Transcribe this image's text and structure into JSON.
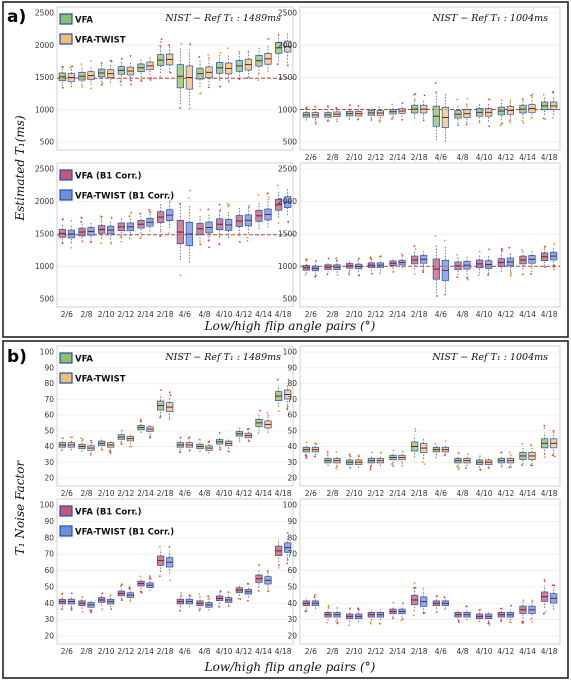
{
  "x_axis_label": "Low/high flip angle pairs (°)",
  "colors": {
    "VFA": "#8cc06a",
    "VFA-TWIST": "#f0c070",
    "VFA (B1 Corr.)": "#c05a78",
    "VFA-TWIST (B1 Corr.)": "#6e8fe0",
    "box_edge": "#2850b0",
    "reference_line": "#b04a4a"
  },
  "sections": [
    {
      "label": "a)",
      "y_axis_label": "Estimated T₁(ms)",
      "panels": [
        {
          "id": "a-top-left",
          "title": "NIST − Ref T₁ : 1489ms",
          "legend": [
            "VFA",
            "VFA-TWIST"
          ],
          "yticks": [
            "2500",
            "2000",
            "1500",
            "1000",
            "500"
          ],
          "show_x_ticks": false
        },
        {
          "id": "a-top-right",
          "title": "NIST − Ref T₁ : 1004ms",
          "legend": [],
          "yticks": [
            "2500",
            "2000",
            "1500",
            "1000",
            "500"
          ],
          "show_x_ticks": true
        },
        {
          "id": "a-bottom-left",
          "title": "",
          "legend": [
            "VFA (B1 Corr.)",
            "VFA-TWIST (B1 Corr.)"
          ],
          "yticks": [
            "2500",
            "2000",
            "1500",
            "1000",
            "500"
          ],
          "show_x_ticks": true
        },
        {
          "id": "a-bottom-right",
          "title": "",
          "legend": [],
          "yticks": [
            "2500",
            "2000",
            "1500",
            "1000",
            "500"
          ],
          "show_x_ticks": true
        }
      ]
    },
    {
      "label": "b)",
      "y_axis_label": "T₁ Noise Factor",
      "panels": [
        {
          "id": "b-top-left",
          "title": "NIST − Ref T₁ : 1489ms",
          "legend": [
            "VFA",
            "VFA-TWIST"
          ],
          "yticks": [
            "100",
            "90",
            "80",
            "70",
            "60",
            "50",
            "40",
            "30",
            "20"
          ],
          "show_x_ticks": true
        },
        {
          "id": "b-top-right",
          "title": "NIST − Ref T₁ : 1004ms",
          "legend": [],
          "yticks": [
            "100",
            "90",
            "80",
            "70",
            "60",
            "50",
            "40",
            "30",
            "20"
          ],
          "show_x_ticks": true
        },
        {
          "id": "b-bottom-left",
          "title": "",
          "legend": [
            "VFA (B1 Corr.)",
            "VFA-TWIST (B1 Corr.)"
          ],
          "yticks": [
            "100",
            "90",
            "80",
            "70",
            "60",
            "50",
            "40",
            "30",
            "20"
          ],
          "show_x_ticks": true
        },
        {
          "id": "b-bottom-right",
          "title": "",
          "legend": [],
          "yticks": [
            "100",
            "90",
            "80",
            "70",
            "60",
            "50",
            "40",
            "30",
            "20"
          ],
          "show_x_ticks": true
        }
      ]
    }
  ],
  "chart_data": [
    {
      "type": "box",
      "panel": "a-top-left",
      "title": "NIST − Ref T₁ : 1489ms",
      "categories": [
        "2/6",
        "2/8",
        "2/10",
        "2/12",
        "2/14",
        "2/18",
        "4/6",
        "4/8",
        "4/10",
        "4/12",
        "4/14",
        "4/18"
      ],
      "ylabel": "Estimated T₁(ms)",
      "ylim": [
        500,
        2500
      ],
      "reference_line": 1489,
      "series": [
        {
          "name": "VFA",
          "medians": [
            1510,
            1520,
            1570,
            1610,
            1650,
            1770,
            1520,
            1560,
            1650,
            1680,
            1760,
            1960
          ]
        },
        {
          "name": "VFA-TWIST",
          "medians": [
            1500,
            1530,
            1560,
            1600,
            1680,
            1780,
            1500,
            1580,
            1640,
            1700,
            1790,
            1980
          ]
        }
      ]
    },
    {
      "type": "box",
      "panel": "a-top-right",
      "title": "NIST − Ref T₁ : 1004ms",
      "categories": [
        "2/6",
        "2/8",
        "2/10",
        "2/12",
        "2/14",
        "2/18",
        "4/6",
        "4/8",
        "4/10",
        "4/12",
        "4/14",
        "4/18"
      ],
      "ylim": [
        500,
        2500
      ],
      "reference_line": 1004,
      "series": [
        {
          "name": "VFA",
          "medians": [
            920,
            920,
            940,
            950,
            970,
            1010,
            900,
            930,
            960,
            980,
            1010,
            1060
          ]
        },
        {
          "name": "VFA-TWIST",
          "medians": [
            920,
            930,
            940,
            950,
            980,
            1010,
            880,
            940,
            960,
            990,
            1020,
            1060
          ]
        }
      ]
    },
    {
      "type": "box",
      "panel": "a-bottom-left",
      "categories": [
        "2/6",
        "2/8",
        "2/10",
        "2/12",
        "2/14",
        "2/18",
        "4/6",
        "4/8",
        "4/10",
        "4/12",
        "4/14",
        "4/18"
      ],
      "ylabel": "Estimated T₁(ms)",
      "ylim": [
        500,
        2500
      ],
      "reference_line": 1489,
      "series": [
        {
          "name": "VFA (B1 Corr.)",
          "medians": [
            1510,
            1530,
            1570,
            1610,
            1650,
            1760,
            1530,
            1580,
            1650,
            1700,
            1780,
            1950
          ]
        },
        {
          "name": "VFA-TWIST (B1 Corr.)",
          "medians": [
            1500,
            1540,
            1560,
            1610,
            1680,
            1790,
            1500,
            1600,
            1640,
            1710,
            1800,
            1990
          ]
        }
      ]
    },
    {
      "type": "box",
      "panel": "a-bottom-right",
      "categories": [
        "2/6",
        "2/8",
        "2/10",
        "2/12",
        "2/14",
        "2/18",
        "4/6",
        "4/8",
        "4/10",
        "4/12",
        "4/14",
        "4/18"
      ],
      "ylim": [
        500,
        2500
      ],
      "reference_line": 1004,
      "series": [
        {
          "name": "VFA (B1 Corr.)",
          "medians": [
            980,
            990,
            1010,
            1020,
            1050,
            1100,
            960,
            1010,
            1040,
            1060,
            1100,
            1150
          ]
        },
        {
          "name": "VFA-TWIST (B1 Corr.)",
          "medians": [
            970,
            990,
            1000,
            1020,
            1060,
            1110,
            940,
            1020,
            1030,
            1070,
            1110,
            1160
          ]
        }
      ]
    },
    {
      "type": "box",
      "panel": "b-top-left",
      "title": "NIST − Ref T₁ : 1489ms",
      "categories": [
        "2/6",
        "2/8",
        "2/10",
        "2/12",
        "2/14",
        "2/18",
        "4/6",
        "4/8",
        "4/10",
        "4/12",
        "4/14",
        "4/18"
      ],
      "ylabel": "T₁ Noise Factor",
      "ylim": [
        20,
        100
      ],
      "series": [
        {
          "name": "VFA",
          "medians": [
            41,
            40,
            42,
            46,
            52,
            66,
            41,
            40,
            43,
            48,
            55,
            72
          ]
        },
        {
          "name": "VFA-TWIST",
          "medians": [
            41,
            39,
            41,
            45,
            51,
            65,
            41,
            39,
            42,
            47,
            54,
            73
          ]
        }
      ]
    },
    {
      "type": "box",
      "panel": "b-top-right",
      "title": "NIST − Ref T₁ : 1004ms",
      "categories": [
        "2/6",
        "2/8",
        "2/10",
        "2/12",
        "2/14",
        "2/18",
        "4/6",
        "4/8",
        "4/10",
        "4/12",
        "4/14",
        "4/18"
      ],
      "ylim": [
        20,
        100
      ],
      "series": [
        {
          "name": "VFA",
          "medians": [
            38,
            31,
            30,
            31,
            33,
            40,
            38,
            31,
            30,
            31,
            34,
            42
          ]
        },
        {
          "name": "VFA-TWIST",
          "medians": [
            38,
            31,
            30,
            31,
            33,
            39,
            38,
            31,
            30,
            31,
            34,
            42
          ]
        }
      ]
    },
    {
      "type": "box",
      "panel": "b-bottom-left",
      "categories": [
        "2/6",
        "2/8",
        "2/10",
        "2/12",
        "2/14",
        "2/18",
        "4/6",
        "4/8",
        "4/10",
        "4/12",
        "4/14",
        "4/18"
      ],
      "ylabel": "T₁ Noise Factor",
      "ylim": [
        20,
        100
      ],
      "series": [
        {
          "name": "VFA (B1 Corr.)",
          "medians": [
            41,
            40,
            42,
            46,
            52,
            66,
            41,
            40,
            43,
            48,
            55,
            72
          ]
        },
        {
          "name": "VFA-TWIST (B1 Corr.)",
          "medians": [
            41,
            39,
            41,
            45,
            51,
            65,
            41,
            39,
            42,
            47,
            54,
            74
          ]
        }
      ]
    },
    {
      "type": "box",
      "panel": "b-bottom-right",
      "categories": [
        "2/6",
        "2/8",
        "2/10",
        "2/12",
        "2/14",
        "2/18",
        "4/6",
        "4/8",
        "4/10",
        "4/12",
        "4/14",
        "4/18"
      ],
      "ylim": [
        20,
        100
      ],
      "series": [
        {
          "name": "VFA (B1 Corr.)",
          "medians": [
            40,
            33,
            32,
            33,
            35,
            42,
            40,
            33,
            32,
            33,
            36,
            44
          ]
        },
        {
          "name": "VFA-TWIST (B1 Corr.)",
          "medians": [
            40,
            33,
            32,
            33,
            35,
            41,
            40,
            33,
            32,
            33,
            36,
            43
          ]
        }
      ]
    }
  ]
}
